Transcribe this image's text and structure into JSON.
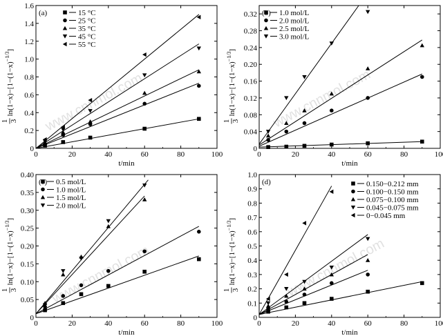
{
  "chart_data": [
    {
      "panel": "(a)",
      "type": "scatter",
      "xlabel": "t/min",
      "ylabel_parts": [
        "1",
        "3",
        "ln(1−x)−[1−(1−x)",
        "−1/3",
        "]"
      ],
      "xlim": [
        0,
        100
      ],
      "ylim": [
        0,
        1.6
      ],
      "xticks": [
        0,
        20,
        40,
        60,
        80,
        100
      ],
      "yticks": [
        0,
        0.2,
        0.4,
        0.6,
        0.8,
        1.0,
        1.2,
        1.4,
        1.6
      ],
      "ytick_labels": [
        "0",
        "0.2",
        "0.4",
        "0.6",
        "0.8",
        "1.0",
        "1.2",
        "1.4",
        "1.6"
      ],
      "legend_position": "top-left",
      "series": [
        {
          "name": "15 °C",
          "marker": "square",
          "x": [
            5,
            15,
            30,
            60,
            90
          ],
          "y": [
            0.03,
            0.07,
            0.12,
            0.22,
            0.33
          ],
          "fit": [
            [
              0,
              0
            ],
            [
              90,
              0.33
            ]
          ]
        },
        {
          "name": "25 °C",
          "marker": "circle",
          "x": [
            5,
            15,
            30,
            60,
            90
          ],
          "y": [
            0.05,
            0.15,
            0.27,
            0.5,
            0.7
          ],
          "fit": [
            [
              0,
              0
            ],
            [
              90,
              0.73
            ]
          ]
        },
        {
          "name": "35 °C",
          "marker": "triangle-up",
          "x": [
            5,
            15,
            30,
            60,
            90
          ],
          "y": [
            0.06,
            0.18,
            0.3,
            0.62,
            0.86
          ],
          "fit": [
            [
              0,
              0
            ],
            [
              90,
              0.88
            ]
          ]
        },
        {
          "name": "45 °C",
          "marker": "triangle-down",
          "x": [
            5,
            15,
            30,
            60,
            90
          ],
          "y": [
            0.08,
            0.21,
            0.42,
            0.82,
            1.12
          ],
          "fit": [
            [
              0,
              0
            ],
            [
              90,
              1.17
            ]
          ]
        },
        {
          "name": "55 °C",
          "marker": "triangle-left",
          "x": [
            5,
            15,
            30,
            60,
            90
          ],
          "y": [
            0.1,
            0.24,
            0.54,
            1.05,
            1.47
          ],
          "fit": [
            [
              0,
              0
            ],
            [
              90,
              1.5
            ]
          ]
        }
      ]
    },
    {
      "panel": "(b)",
      "type": "scatter",
      "xlabel": "t/min",
      "ylabel_parts": [
        "1",
        "3",
        "ln(1−x)−[1−(1−x)",
        "−1/3",
        "]"
      ],
      "xlim": [
        0,
        100
      ],
      "ylim": [
        0,
        0.34
      ],
      "xticks": [
        0,
        20,
        40,
        60,
        80,
        100
      ],
      "yticks": [
        0,
        0.04,
        0.08,
        0.12,
        0.16,
        0.2,
        0.24,
        0.28,
        0.32
      ],
      "ytick_labels": [
        "0",
        "0.04",
        "0.08",
        "0.12",
        "0.16",
        "0.20",
        "0.24",
        "0.28",
        "0.32"
      ],
      "legend_position": "top-left",
      "series": [
        {
          "name": "1.0 mol/L",
          "marker": "square",
          "x": [
            5,
            15,
            25,
            40,
            60,
            90
          ],
          "y": [
            0.003,
            0.004,
            0.006,
            0.009,
            0.012,
            0.016
          ],
          "fit": [
            [
              0,
              0.003
            ],
            [
              90,
              0.016
            ]
          ]
        },
        {
          "name": "2.0 mol/L",
          "marker": "circle",
          "x": [
            5,
            15,
            25,
            40,
            60,
            90
          ],
          "y": [
            0.02,
            0.04,
            0.06,
            0.09,
            0.12,
            0.17
          ],
          "fit": [
            [
              0,
              0.005
            ],
            [
              90,
              0.177
            ]
          ]
        },
        {
          "name": "2.5 mol/L",
          "marker": "triangle-up",
          "x": [
            5,
            15,
            25,
            40,
            60,
            90
          ],
          "y": [
            0.03,
            0.06,
            0.09,
            0.13,
            0.19,
            0.245
          ],
          "fit": [
            [
              0,
              0.008
            ],
            [
              90,
              0.258
            ]
          ]
        },
        {
          "name": "3.0 mol/L",
          "marker": "triangle-down",
          "x": [
            5,
            15,
            25,
            40,
            60
          ],
          "y": [
            0.04,
            0.12,
            0.17,
            0.25,
            0.325
          ],
          "fit": [
            [
              0,
              0.01
            ],
            [
              55,
              0.34
            ]
          ]
        }
      ]
    },
    {
      "panel": "(c)",
      "type": "scatter",
      "xlabel": "t/min",
      "ylabel_parts": [
        "1",
        "3",
        "ln(1−x)−[1−(1−x)",
        "−1/3",
        "]"
      ],
      "xlim": [
        0,
        100
      ],
      "ylim": [
        0,
        0.4
      ],
      "xticks": [
        0,
        20,
        40,
        60,
        80,
        100
      ],
      "yticks": [
        0,
        0.05,
        0.1,
        0.15,
        0.2,
        0.25,
        0.3,
        0.35,
        0.4
      ],
      "ytick_labels": [
        "0",
        "0.05",
        "0.10",
        "0.15",
        "0.20",
        "0.25",
        "0.30",
        "0.35",
        "0.40"
      ],
      "legend_position": "top-left",
      "series": [
        {
          "name": "0.5 mol/L",
          "marker": "square",
          "x": [
            5,
            15,
            25,
            40,
            60,
            90
          ],
          "y": [
            0.02,
            0.04,
            0.065,
            0.088,
            0.128,
            0.163
          ],
          "fit": [
            [
              0,
              0.01
            ],
            [
              90,
              0.172
            ]
          ]
        },
        {
          "name": "1.0 mol/L",
          "marker": "circle",
          "x": [
            5,
            15,
            25,
            40,
            60,
            90
          ],
          "y": [
            0.03,
            0.06,
            0.09,
            0.13,
            0.185,
            0.24
          ],
          "fit": [
            [
              0,
              0.01
            ],
            [
              90,
              0.255
            ]
          ]
        },
        {
          "name": "1.5 mol/L",
          "marker": "triangle-up",
          "x": [
            5,
            15,
            25,
            40,
            60
          ],
          "y": [
            0.04,
            0.12,
            0.17,
            0.255,
            0.33
          ],
          "fit": [
            [
              0,
              0.01
            ],
            [
              60,
              0.34
            ]
          ]
        },
        {
          "name": "2.0 mol/L",
          "marker": "triangle-down",
          "x": [
            5,
            15,
            25,
            40,
            60
          ],
          "y": [
            0.035,
            0.13,
            0.165,
            0.27,
            0.37
          ],
          "fit": [
            [
              0,
              0.01
            ],
            [
              62,
              0.385
            ]
          ]
        }
      ]
    },
    {
      "panel": "(d)",
      "type": "scatter",
      "xlabel": "t/min",
      "ylabel_parts": [
        "1",
        "3",
        "ln(1−x)−[1−(1−x)",
        "−1/3",
        "]"
      ],
      "xlim": [
        0,
        100
      ],
      "ylim": [
        0,
        1.0
      ],
      "xticks": [
        0,
        20,
        40,
        60,
        80,
        100
      ],
      "yticks": [
        0,
        0.1,
        0.2,
        0.3,
        0.4,
        0.5,
        0.6,
        0.7,
        0.8,
        0.9,
        1.0
      ],
      "ytick_labels": [
        "0",
        "0.1",
        "0.2",
        "0.3",
        "0.4",
        "0.5",
        "0.6",
        "0.7",
        "0.8",
        "0.9",
        "1.0"
      ],
      "legend_position": "top-right",
      "series": [
        {
          "name": "0.150−0.212 mm",
          "marker": "square",
          "x": [
            5,
            15,
            25,
            40,
            60,
            90
          ],
          "y": [
            0.04,
            0.07,
            0.1,
            0.13,
            0.18,
            0.24
          ],
          "fit": [
            [
              0,
              0.02
            ],
            [
              90,
              0.25
            ]
          ]
        },
        {
          "name": "0.100−0.150 mm",
          "marker": "circle",
          "x": [
            5,
            15,
            25,
            40,
            60
          ],
          "y": [
            0.06,
            0.11,
            0.16,
            0.24,
            0.3
          ],
          "fit": [
            [
              0,
              0.02
            ],
            [
              60,
              0.33
            ]
          ]
        },
        {
          "name": "0.075−0.100 mm",
          "marker": "triangle-up",
          "x": [
            5,
            15,
            25,
            40,
            60
          ],
          "y": [
            0.08,
            0.15,
            0.2,
            0.3,
            0.4
          ],
          "fit": [
            [
              0,
              0.02
            ],
            [
              60,
              0.44
            ]
          ]
        },
        {
          "name": "0.045−0.075 mm",
          "marker": "triangle-down",
          "x": [
            5,
            15,
            25,
            40,
            60
          ],
          "y": [
            0.1,
            0.2,
            0.25,
            0.35,
            0.55
          ],
          "fit": [
            [
              0,
              0.02
            ],
            [
              60,
              0.58
            ]
          ]
        },
        {
          "name": "0−0.045 mm",
          "marker": "triangle-left",
          "x": [
            5,
            15,
            25,
            40
          ],
          "y": [
            0.13,
            0.3,
            0.66,
            0.88
          ],
          "fit": [
            [
              0,
              0.02
            ],
            [
              40,
              0.92
            ]
          ]
        }
      ]
    }
  ],
  "watermark": "www.cnnmol.com"
}
